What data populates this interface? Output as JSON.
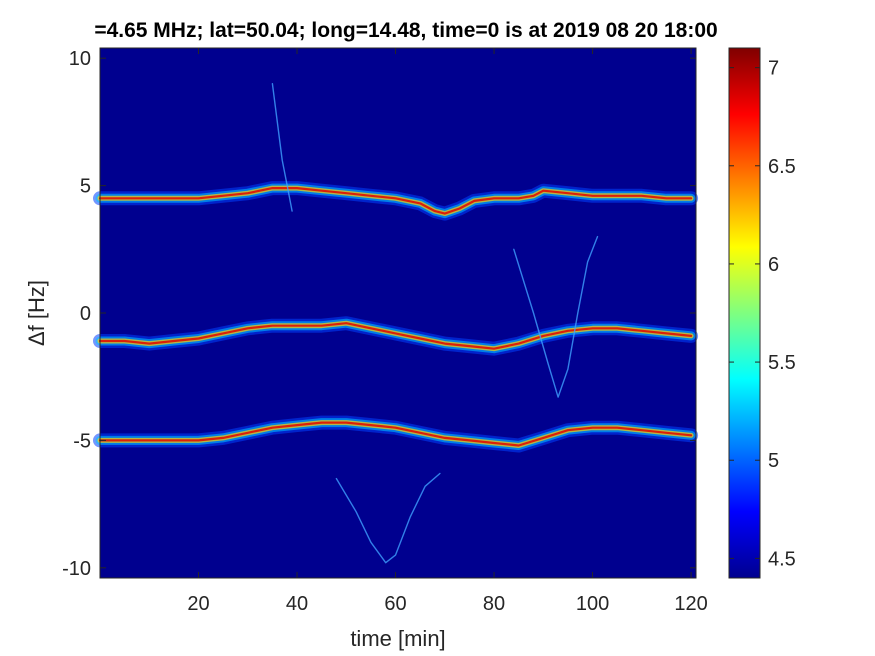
{
  "chart_data": {
    "type": "heatmap",
    "title": "=4.65 MHz;  lat=50.04; long=14.48, time=0 is at 2019 08 20 18:00",
    "xlabel": "time [min]",
    "ylabel": "Δf [Hz]",
    "xlim": [
      0,
      121
    ],
    "ylim": [
      -10.4,
      10.4
    ],
    "x_ticks": [
      20,
      40,
      60,
      80,
      100,
      120
    ],
    "y_ticks": [
      -10,
      -5,
      0,
      5,
      10
    ],
    "x_tick_labels": [
      "20",
      "40",
      "60",
      "80",
      "100",
      "120"
    ],
    "y_tick_labels": [
      "-10",
      "-5",
      "0",
      "5",
      "10"
    ],
    "colorbar": {
      "colormap": "jet",
      "range": [
        4.4,
        7.1
      ],
      "ticks": [
        4.5,
        5,
        5.5,
        6,
        6.5,
        7
      ],
      "tick_labels": [
        "4.5",
        "5",
        "5.5",
        "6",
        "6.5",
        "7"
      ]
    },
    "background_color": "#00008f",
    "series": [
      {
        "x": [
          0,
          10,
          20,
          30,
          35,
          40,
          45,
          50,
          55,
          60,
          65,
          68,
          70,
          73,
          76,
          80,
          85,
          88,
          90,
          95,
          100,
          105,
          110,
          115,
          120
        ],
        "y": [
          4.5,
          4.5,
          4.5,
          4.7,
          4.9,
          4.9,
          4.8,
          4.7,
          4.6,
          4.5,
          4.3,
          4.0,
          3.9,
          4.1,
          4.4,
          4.5,
          4.5,
          4.6,
          4.8,
          4.7,
          4.6,
          4.6,
          4.6,
          4.5,
          4.5
        ]
      },
      {
        "x": [
          0,
          5,
          10,
          15,
          20,
          25,
          30,
          35,
          40,
          45,
          50,
          55,
          60,
          65,
          70,
          75,
          80,
          85,
          90,
          95,
          100,
          105,
          110,
          115,
          120
        ],
        "y": [
          -1.1,
          -1.1,
          -1.2,
          -1.1,
          -1.0,
          -0.8,
          -0.6,
          -0.5,
          -0.5,
          -0.5,
          -0.4,
          -0.6,
          -0.8,
          -1.0,
          -1.2,
          -1.3,
          -1.4,
          -1.2,
          -0.9,
          -0.7,
          -0.6,
          -0.6,
          -0.7,
          -0.8,
          -0.9
        ]
      },
      {
        "x": [
          0,
          5,
          10,
          15,
          20,
          25,
          30,
          35,
          40,
          45,
          50,
          55,
          60,
          65,
          70,
          75,
          80,
          85,
          90,
          95,
          100,
          105,
          110,
          115,
          120
        ],
        "y": [
          -5.0,
          -5.0,
          -5.0,
          -5.0,
          -5.0,
          -4.9,
          -4.7,
          -4.5,
          -4.4,
          -4.3,
          -4.3,
          -4.4,
          -4.5,
          -4.7,
          -4.9,
          -5.0,
          -5.1,
          -5.2,
          -4.9,
          -4.6,
          -4.5,
          -4.5,
          -4.6,
          -4.7,
          -4.8
        ]
      },
      {
        "x": [
          48,
          52,
          55,
          58,
          60,
          63,
          66,
          69
        ],
        "y": [
          -6.5,
          -7.8,
          -9.0,
          -9.8,
          -9.5,
          -8.0,
          -6.8,
          -6.3
        ]
      },
      {
        "x": [
          84,
          88,
          91,
          93,
          95,
          97,
          99,
          101
        ],
        "y": [
          2.5,
          0.0,
          -2.0,
          -3.3,
          -2.2,
          0.0,
          2.0,
          3.0
        ]
      },
      {
        "x": [
          35,
          36,
          37,
          38,
          39
        ],
        "y": [
          9.0,
          7.5,
          6.0,
          5.0,
          4.0
        ]
      }
    ]
  }
}
